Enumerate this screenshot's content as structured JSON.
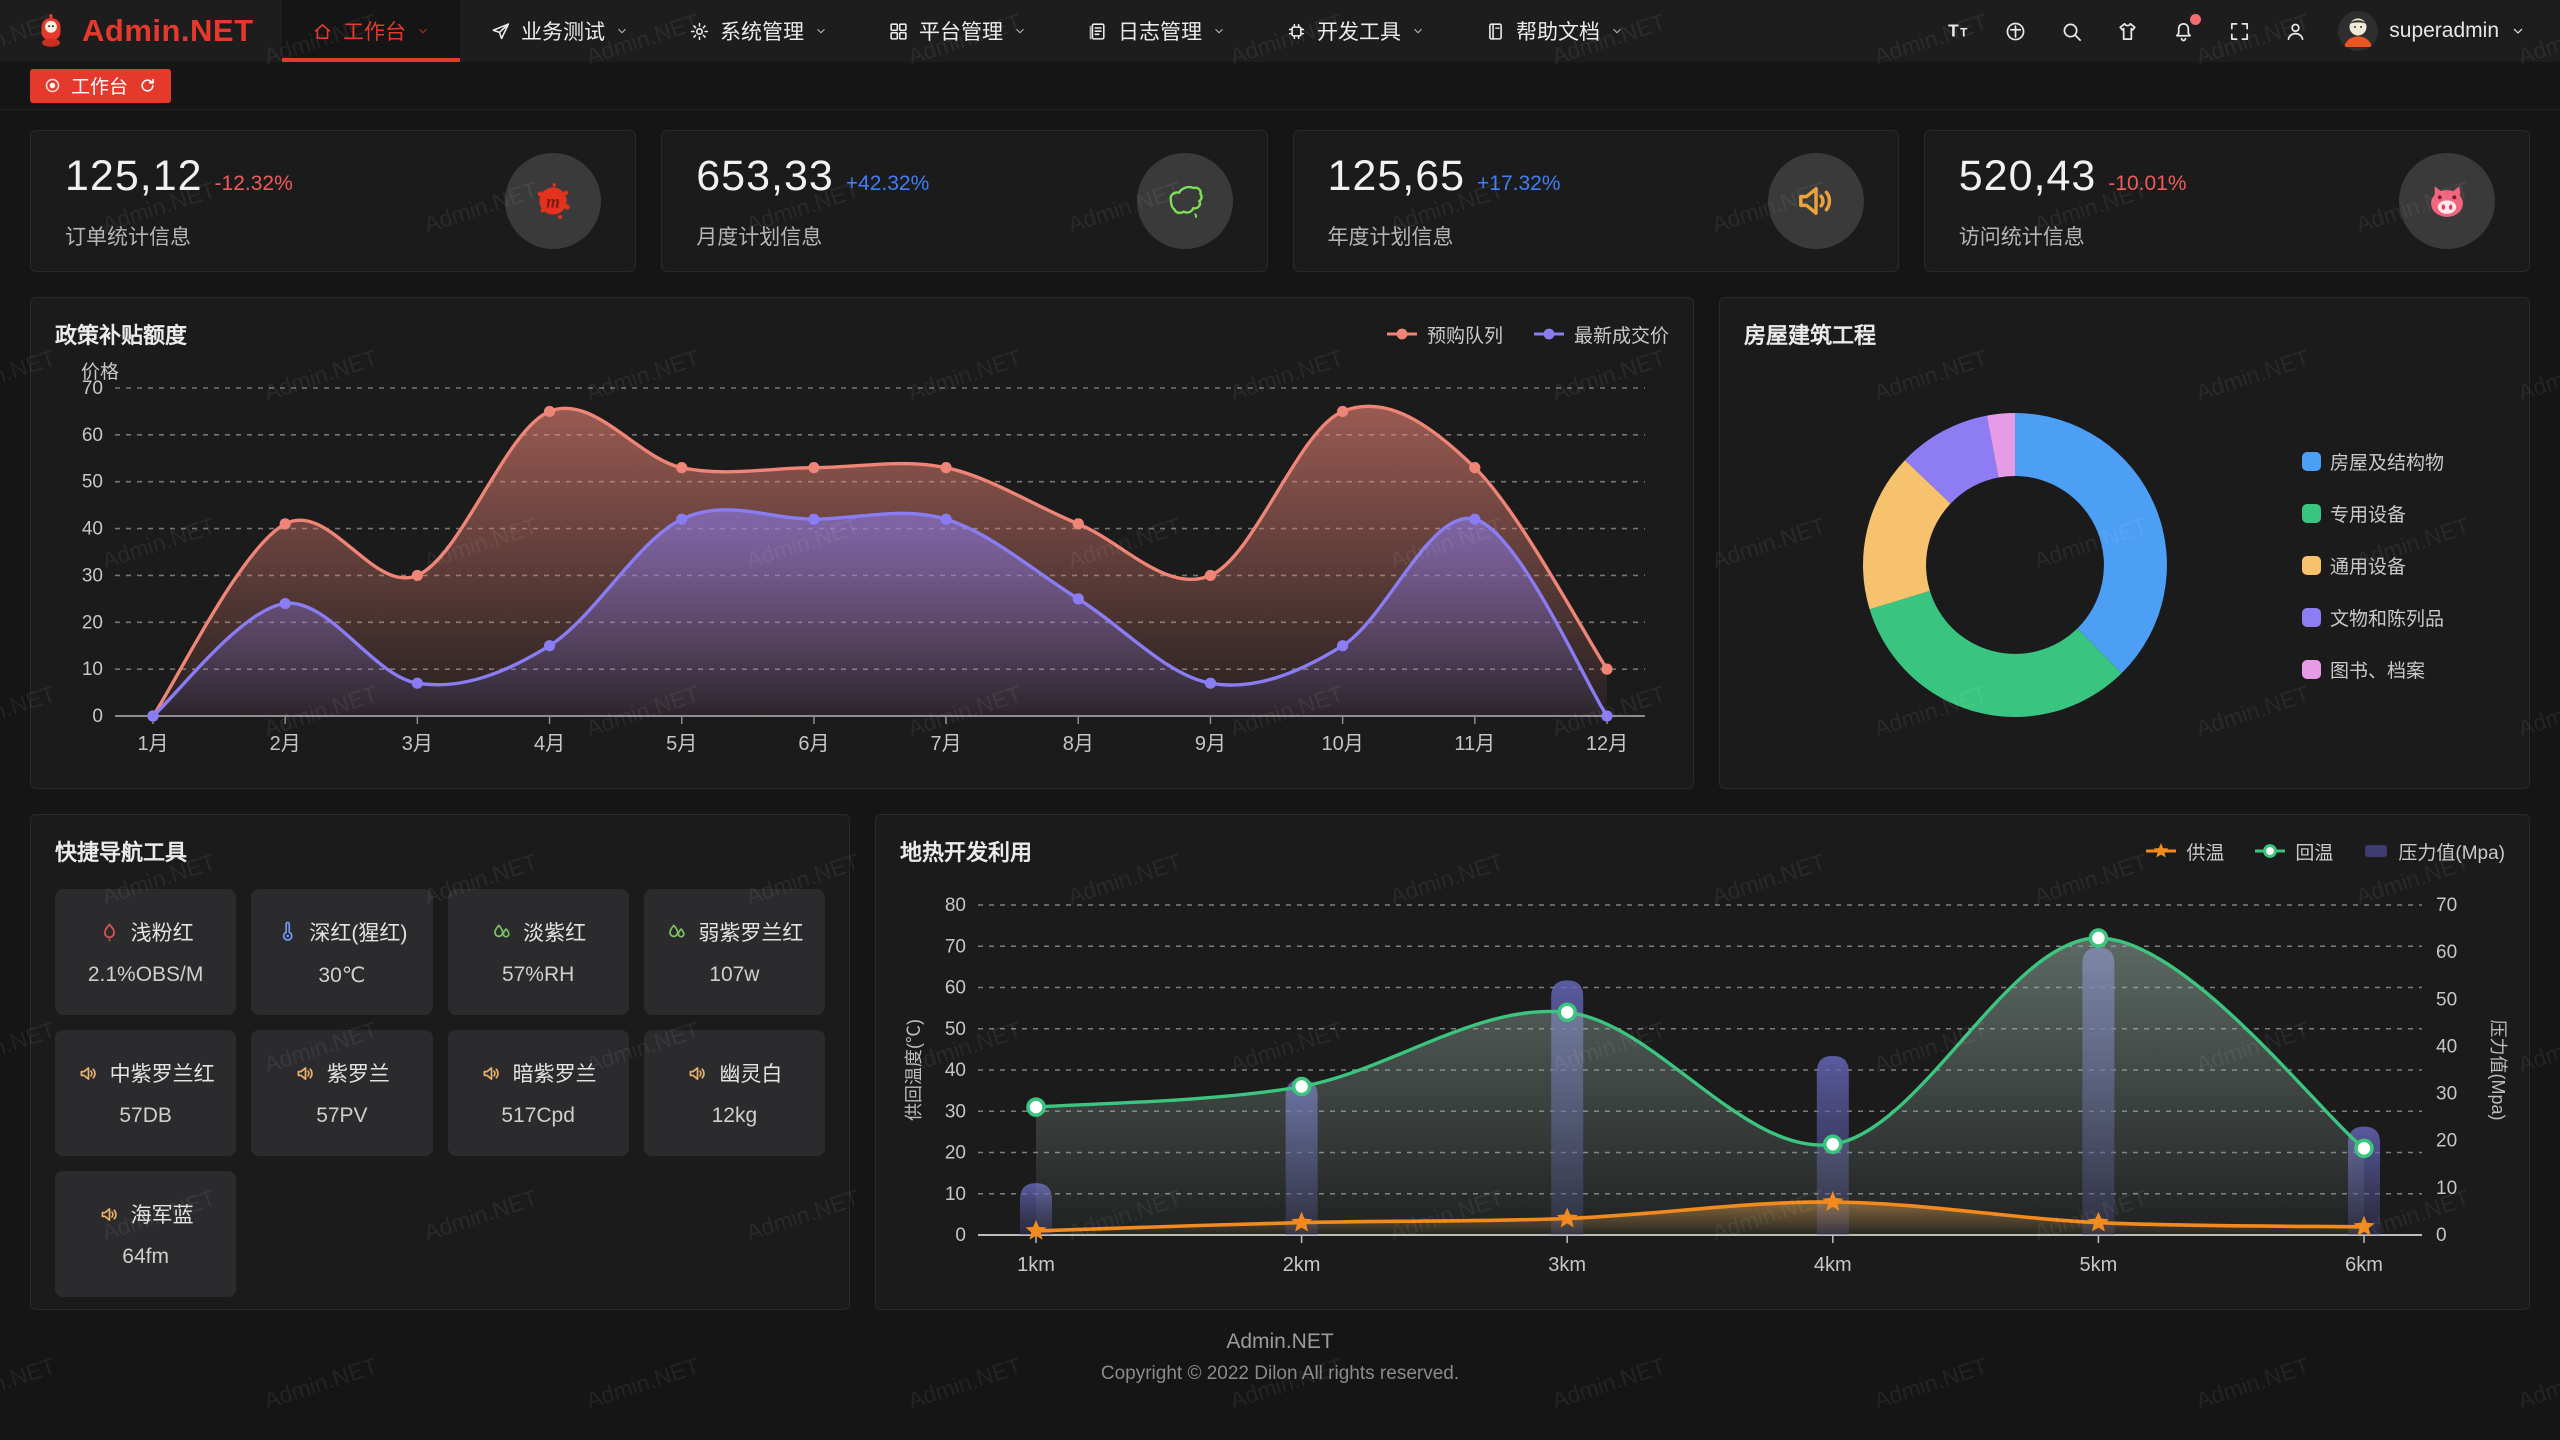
{
  "brand": {
    "logo_text": "Admin.NET"
  },
  "header": {
    "menu": [
      {
        "label": "工作台",
        "icon": "home-icon",
        "active": true
      },
      {
        "label": "业务测试",
        "icon": "send-icon",
        "active": false
      },
      {
        "label": "系统管理",
        "icon": "gear-icon",
        "active": false
      },
      {
        "label": "平台管理",
        "icon": "grid-icon",
        "active": false
      },
      {
        "label": "日志管理",
        "icon": "log-icon",
        "active": false
      },
      {
        "label": "开发工具",
        "icon": "chip-icon",
        "active": false
      },
      {
        "label": "帮助文档",
        "icon": "docs-icon",
        "active": false
      }
    ],
    "right_icons": [
      {
        "name": "font-size-icon",
        "badge": false
      },
      {
        "name": "language-icon",
        "badge": false
      },
      {
        "name": "search-icon",
        "badge": false
      },
      {
        "name": "theme-icon",
        "badge": false
      },
      {
        "name": "notification-icon",
        "badge": true
      },
      {
        "name": "fullscreen-icon",
        "badge": false
      },
      {
        "name": "profile-icon",
        "badge": false
      }
    ],
    "user": {
      "name": "superadmin"
    }
  },
  "tabbar": {
    "active_tab": "工作台"
  },
  "stats": [
    {
      "value": "125,12",
      "delta": "-12.32%",
      "trend": "down",
      "label": "订单统计信息",
      "icon": "medium-splat-icon"
    },
    {
      "value": "653,33",
      "delta": "+42.32%",
      "trend": "up",
      "label": "月度计划信息",
      "icon": "china-map-icon"
    },
    {
      "value": "125,65",
      "delta": "+17.32%",
      "trend": "up",
      "label": "年度计划信息",
      "icon": "horn-icon"
    },
    {
      "value": "520,43",
      "delta": "-10.01%",
      "trend": "down",
      "label": "访问统计信息",
      "icon": "pig-icon"
    }
  ],
  "chart_data": [
    {
      "type": "area",
      "title": "政策补贴额度",
      "ylabel": "价格",
      "ylim": [
        0,
        70
      ],
      "y_ticks": [
        0,
        10,
        20,
        30,
        40,
        50,
        60,
        70
      ],
      "categories": [
        "1月",
        "2月",
        "3月",
        "4月",
        "5月",
        "6月",
        "7月",
        "8月",
        "9月",
        "10月",
        "11月",
        "12月"
      ],
      "grid": "dashed",
      "legend_position": "top-right",
      "series": [
        {
          "name": "预购队列",
          "color": "#ee8576",
          "values": [
            0,
            41,
            30,
            65,
            53,
            53,
            53,
            41,
            30,
            65,
            53,
            10
          ]
        },
        {
          "name": "最新成交价",
          "color": "#8a7cf2",
          "values": [
            0,
            24,
            7,
            15,
            42,
            42,
            42,
            25,
            7,
            15,
            42,
            0
          ]
        }
      ]
    },
    {
      "type": "pie",
      "title": "房屋建筑工程",
      "donut": true,
      "legend_position": "right",
      "labels": [
        "房屋及结构物",
        "专用设备",
        "通用设备",
        "文物和陈列品",
        "图书、档案"
      ],
      "values": [
        38,
        33,
        17,
        10,
        3
      ],
      "colors": [
        "#4d9ef5",
        "#39c57f",
        "#f6c26e",
        "#8d7cf3",
        "#e79be6"
      ]
    },
    {
      "type": "line+bar",
      "title": "地热开发利用",
      "categories": [
        "1km",
        "2km",
        "3km",
        "4km",
        "5km",
        "6km"
      ],
      "ylabel_left": "供回温度(℃)",
      "ylabel_right": "压力值(Mpa)",
      "ylim_left": [
        0,
        80
      ],
      "ylim_right": [
        0,
        70
      ],
      "y_ticks_left": [
        0,
        10,
        20,
        30,
        40,
        50,
        60,
        70,
        80
      ],
      "y_ticks_right": [
        0,
        10,
        20,
        30,
        40,
        50,
        60,
        70
      ],
      "grid": "dashed",
      "legend_position": "top-right",
      "series": [
        {
          "name": "供温",
          "type": "line",
          "marker": "star",
          "axis": "left",
          "color": "#f28a1e",
          "values": [
            1,
            3,
            4,
            8,
            3,
            2
          ]
        },
        {
          "name": "回温",
          "type": "line",
          "marker": "circle",
          "axis": "left",
          "color": "#3cc57f",
          "values": [
            31,
            36,
            54,
            22,
            72,
            21
          ]
        },
        {
          "name": "压力值(Mpa)",
          "type": "bar",
          "axis": "right",
          "color": "#56569e",
          "values": [
            11,
            33,
            54,
            38,
            61,
            23
          ]
        }
      ]
    }
  ],
  "quick_nav": {
    "title": "快捷导航工具",
    "items": [
      {
        "label": "浅粉红",
        "value": "2.1%OBS/M",
        "icon": "heat-icon",
        "icon_color": "#df5450"
      },
      {
        "label": "深红(猩红)",
        "value": "30℃",
        "icon": "thermometer-icon",
        "icon_color": "#6e96f5"
      },
      {
        "label": "淡紫红",
        "value": "57%RH",
        "icon": "leaf-icon",
        "icon_color": "#7ac35f"
      },
      {
        "label": "弱紫罗兰红",
        "value": "107w",
        "icon": "leaf-icon",
        "icon_color": "#7ac35f"
      },
      {
        "label": "中紫罗兰红",
        "value": "57DB",
        "icon": "volume-icon",
        "icon_color": "#e8b06a"
      },
      {
        "label": "紫罗兰",
        "value": "57PV",
        "icon": "volume-icon",
        "icon_color": "#e8b06a"
      },
      {
        "label": "暗紫罗兰",
        "value": "517Cpd",
        "icon": "volume-icon",
        "icon_color": "#e8b06a"
      },
      {
        "label": "幽灵白",
        "value": "12kg",
        "icon": "volume-icon",
        "icon_color": "#e8b06a"
      },
      {
        "label": "海军蓝",
        "value": "64fm",
        "icon": "volume-icon",
        "icon_color": "#e8b06a"
      }
    ]
  },
  "watermark": {
    "text": "Admin.NET"
  },
  "footer": {
    "line1": "Admin.NET",
    "line2": "Copyright © 2022 Dilon All rights reserved."
  }
}
